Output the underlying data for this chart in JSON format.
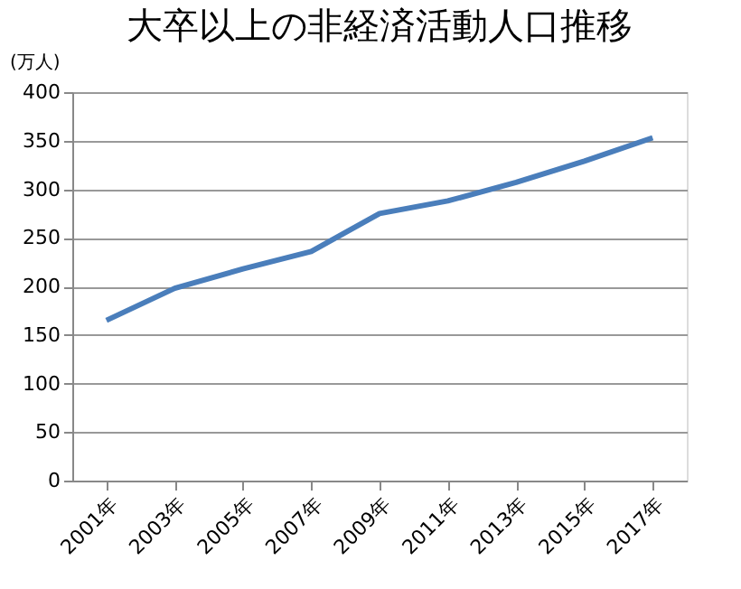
{
  "chart_data": {
    "type": "line",
    "title": "大卒以上の非経済活動人口推移",
    "ylabel": "(万人)",
    "categories": [
      "2001年",
      "2003年",
      "2005年",
      "2007年",
      "2009年",
      "2011年",
      "2013年",
      "2015年",
      "2017年"
    ],
    "series": [
      {
        "color": "#4a7ebb",
        "values": [
          165,
          198,
          218,
          236,
          275,
          288,
          307,
          329,
          353
        ]
      }
    ],
    "ylim": [
      0,
      400
    ],
    "yticks": [
      0,
      50,
      100,
      150,
      200,
      250,
      300,
      350,
      400
    ],
    "grid": "y",
    "marker": "none",
    "line_style": "solid",
    "legend": false
  }
}
